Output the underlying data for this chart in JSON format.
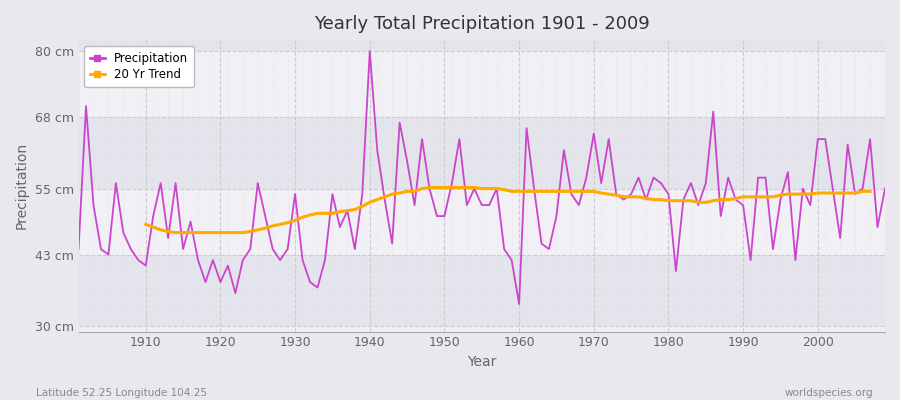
{
  "title": "Yearly Total Precipitation 1901 - 2009",
  "xlabel": "Year",
  "ylabel": "Precipitation",
  "footnote_left": "Latitude 52.25 Longitude 104.25",
  "footnote_right": "worldspecies.org",
  "line_color": "#cc44cc",
  "trend_color": "#ffaa00",
  "bg_color": "#e8e8ee",
  "plot_bg_light": "#f0f0f5",
  "plot_bg_dark": "#e4e4ec",
  "ylim": [
    29,
    82
  ],
  "yticks": [
    30,
    43,
    55,
    68,
    80
  ],
  "ytick_labels": [
    "30 cm",
    "43 cm",
    "55 cm",
    "68 cm",
    "80 cm"
  ],
  "years": [
    1901,
    1902,
    1903,
    1904,
    1905,
    1906,
    1907,
    1908,
    1909,
    1910,
    1911,
    1912,
    1913,
    1914,
    1915,
    1916,
    1917,
    1918,
    1919,
    1920,
    1921,
    1922,
    1923,
    1924,
    1925,
    1926,
    1927,
    1928,
    1929,
    1930,
    1931,
    1932,
    1933,
    1934,
    1935,
    1936,
    1937,
    1938,
    1939,
    1940,
    1941,
    1942,
    1943,
    1944,
    1945,
    1946,
    1947,
    1948,
    1949,
    1950,
    1951,
    1952,
    1953,
    1954,
    1955,
    1956,
    1957,
    1958,
    1959,
    1960,
    1961,
    1962,
    1963,
    1964,
    1965,
    1966,
    1967,
    1968,
    1969,
    1970,
    1971,
    1972,
    1973,
    1974,
    1975,
    1976,
    1977,
    1978,
    1979,
    1980,
    1981,
    1982,
    1983,
    1984,
    1985,
    1986,
    1987,
    1988,
    1989,
    1990,
    1991,
    1992,
    1993,
    1994,
    1995,
    1996,
    1997,
    1998,
    1999,
    2000,
    2001,
    2002,
    2003,
    2004,
    2005,
    2006,
    2007,
    2008,
    2009
  ],
  "precip": [
    44,
    70,
    52,
    44,
    43,
    56,
    47,
    44,
    42,
    41,
    50,
    56,
    46,
    56,
    44,
    49,
    42,
    38,
    42,
    38,
    41,
    36,
    42,
    44,
    56,
    50,
    44,
    42,
    44,
    54,
    42,
    38,
    37,
    42,
    54,
    48,
    51,
    44,
    54,
    80,
    62,
    53,
    45,
    67,
    60,
    52,
    64,
    55,
    50,
    50,
    56,
    64,
    52,
    55,
    52,
    52,
    55,
    44,
    42,
    34,
    66,
    55,
    45,
    44,
    50,
    62,
    54,
    52,
    57,
    65,
    56,
    64,
    54,
    53,
    54,
    57,
    53,
    57,
    56,
    54,
    40,
    53,
    56,
    52,
    56,
    69,
    50,
    57,
    53,
    52,
    42,
    57,
    57,
    44,
    53,
    58,
    42,
    55,
    52,
    64,
    64,
    55,
    46,
    63,
    54,
    55,
    64,
    48,
    55
  ],
  "trend": [
    null,
    null,
    null,
    null,
    null,
    null,
    null,
    null,
    null,
    48.5,
    48.0,
    47.5,
    47.2,
    47.0,
    47.0,
    47.0,
    47.0,
    47.0,
    47.0,
    47.0,
    47.0,
    47.0,
    47.0,
    47.2,
    47.5,
    47.8,
    48.2,
    48.5,
    48.8,
    49.2,
    49.8,
    50.2,
    50.5,
    50.5,
    50.5,
    50.8,
    51.0,
    51.2,
    51.8,
    52.5,
    53.0,
    53.5,
    54.0,
    54.2,
    54.5,
    54.5,
    55.0,
    55.2,
    55.2,
    55.2,
    55.2,
    55.2,
    55.2,
    55.2,
    55.0,
    55.0,
    55.0,
    54.8,
    54.5,
    54.5,
    54.5,
    54.5,
    54.5,
    54.5,
    54.5,
    54.5,
    54.5,
    54.5,
    54.5,
    54.5,
    54.2,
    54.0,
    53.8,
    53.5,
    53.5,
    53.5,
    53.2,
    53.0,
    53.0,
    52.8,
    52.8,
    52.8,
    52.8,
    52.5,
    52.5,
    52.8,
    53.0,
    53.0,
    53.2,
    53.5,
    53.5,
    53.5,
    53.5,
    53.5,
    53.8,
    54.0,
    54.0,
    54.0,
    54.0,
    54.2,
    54.2,
    54.2,
    54.2,
    54.2,
    54.2,
    54.5,
    54.5,
    null,
    null
  ]
}
